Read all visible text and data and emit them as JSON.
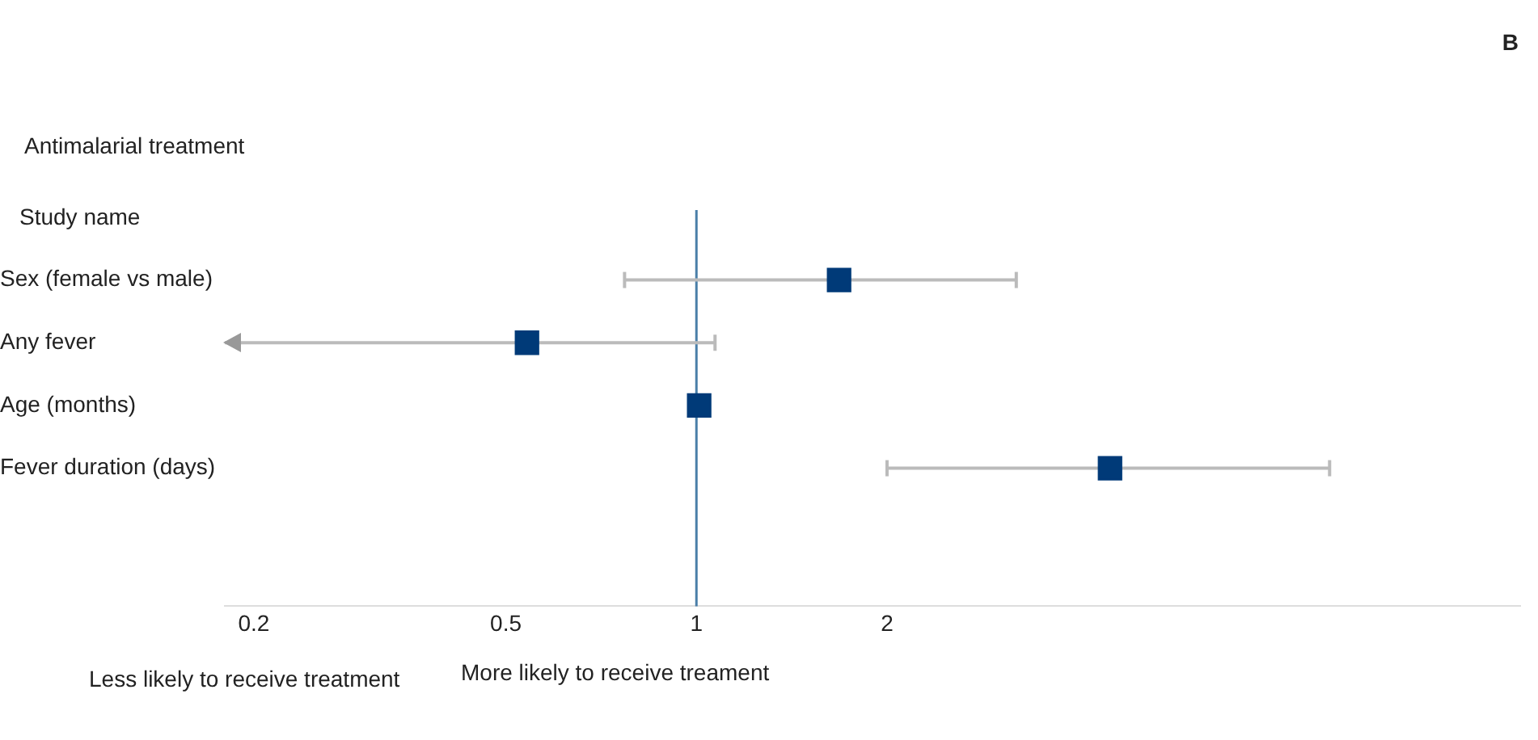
{
  "chart_data": {
    "type": "scatter",
    "orientation": "horizontal",
    "title": "Antimalarial treatment",
    "annotations": [
      "B",
      "Study name",
      "Less likely to receive treatment",
      "More likely to receive treament"
    ],
    "categories": [
      "Sex (female vs male)",
      "Any fever",
      "Age (months)",
      "Fever duration (days)"
    ],
    "values": [
      1.68,
      0.54,
      1.01,
      4.5
    ],
    "errors": [
      [
        0.77,
        3.2
      ],
      [
        0.18,
        1.07
      ],
      null,
      [
        2.0,
        10
      ]
    ],
    "color": "#003a78",
    "marker": "square",
    "log": "x",
    "xlim": [
      0.18,
      20
    ],
    "xticks": [
      0.2,
      0.5,
      1,
      2
    ],
    "ref_lines": [
      {
        "axis": "x",
        "value": 1,
        "color": "#4a7fa8"
      }
    ],
    "grid": false,
    "legend": false
  }
}
